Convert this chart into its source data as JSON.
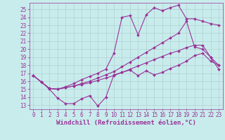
{
  "title": "",
  "xlabel": "Windchill (Refroidissement éolien,°C)",
  "xlim": [
    -0.5,
    23.5
  ],
  "ylim": [
    12.5,
    25.8
  ],
  "yticks": [
    13,
    14,
    15,
    16,
    17,
    18,
    19,
    20,
    21,
    22,
    23,
    24,
    25
  ],
  "xticks": [
    0,
    1,
    2,
    3,
    4,
    5,
    6,
    7,
    8,
    9,
    10,
    11,
    12,
    13,
    14,
    15,
    16,
    17,
    18,
    19,
    20,
    21,
    22,
    23
  ],
  "background_color": "#c8ecec",
  "grid_color": "#b0d0d0",
  "line_color": "#993399",
  "line1_x": [
    0,
    1,
    2,
    3,
    4,
    5,
    6,
    7,
    8,
    9,
    10,
    11,
    12,
    13,
    14,
    15,
    16,
    17,
    18,
    19,
    20,
    21,
    22,
    23
  ],
  "line1_y": [
    16.7,
    15.9,
    15.0,
    13.9,
    13.2,
    13.2,
    13.8,
    14.2,
    12.9,
    14.0,
    16.8,
    17.1,
    17.4,
    16.7,
    17.3,
    16.8,
    17.1,
    17.6,
    18.0,
    18.5,
    19.2,
    19.5,
    18.5,
    18.0
  ],
  "line2_x": [
    0,
    1,
    2,
    3,
    4,
    5,
    6,
    7,
    8,
    9,
    10,
    11,
    12,
    13,
    14,
    15,
    16,
    17,
    18,
    19,
    20,
    21,
    22,
    23
  ],
  "line2_y": [
    16.7,
    15.9,
    15.1,
    15.0,
    15.2,
    15.4,
    15.6,
    15.8,
    16.1,
    16.4,
    16.7,
    17.1,
    17.5,
    17.9,
    18.3,
    18.7,
    19.1,
    19.5,
    19.8,
    20.2,
    20.5,
    20.5,
    19.0,
    18.0
  ],
  "line3_x": [
    0,
    2,
    3,
    4,
    5,
    6,
    7,
    8,
    9,
    10,
    11,
    12,
    13,
    14,
    15,
    16,
    17,
    18,
    19,
    20,
    21,
    22,
    23
  ],
  "line3_y": [
    16.7,
    15.1,
    15.0,
    15.2,
    15.4,
    15.7,
    16.0,
    16.4,
    16.8,
    17.2,
    17.8,
    18.4,
    19.0,
    19.6,
    20.2,
    20.8,
    21.4,
    22.0,
    23.5,
    20.3,
    20.0,
    19.0,
    17.5
  ],
  "line4_x": [
    0,
    1,
    2,
    3,
    4,
    5,
    6,
    7,
    8,
    9,
    10,
    11,
    12,
    13,
    14,
    15,
    16,
    17,
    18,
    19,
    20,
    21,
    22,
    23
  ],
  "line4_y": [
    16.7,
    15.9,
    15.1,
    15.0,
    15.3,
    15.7,
    16.2,
    16.6,
    17.0,
    17.5,
    19.5,
    24.0,
    24.2,
    21.8,
    24.3,
    25.2,
    24.8,
    25.2,
    25.5,
    23.8,
    23.8,
    23.5,
    23.2,
    23.0
  ],
  "marker": "D",
  "markersize": 2.0,
  "linewidth": 0.8,
  "fontsize_xlabel": 6.5,
  "fontsize_ticks": 5.5
}
